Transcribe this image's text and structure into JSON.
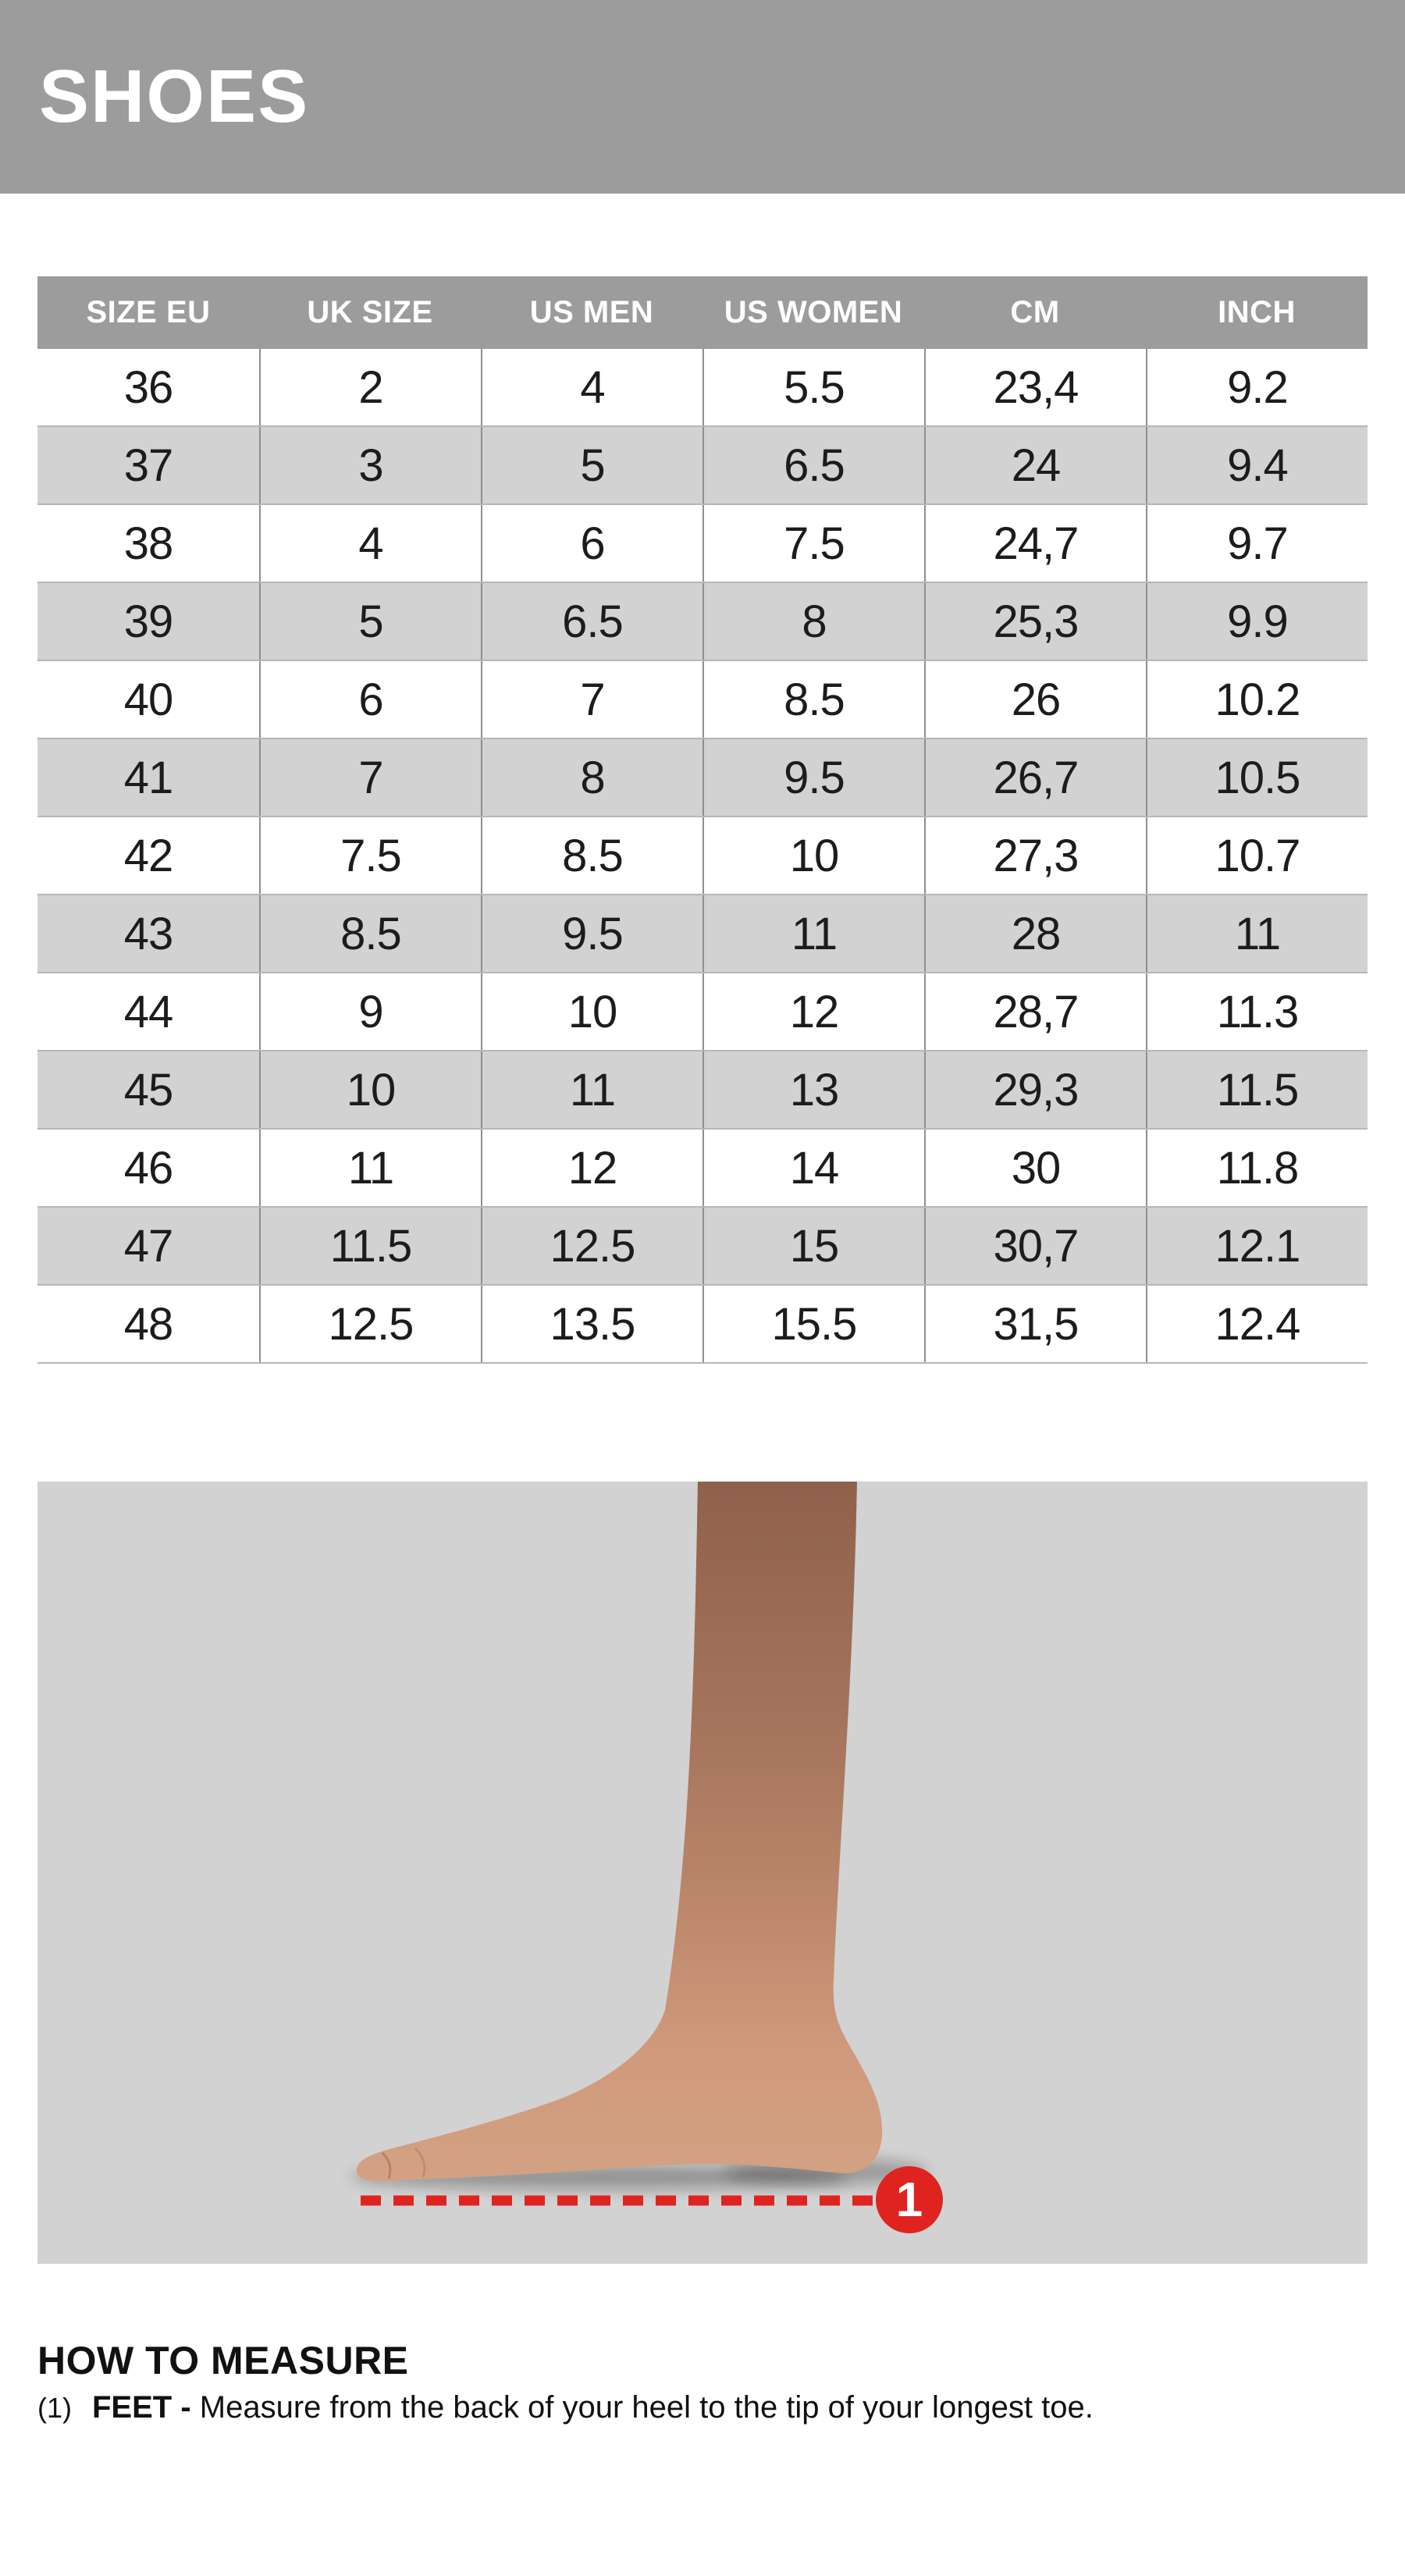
{
  "page": {
    "title": "SHOES"
  },
  "table": {
    "headers": [
      "SIZE EU",
      "UK SIZE",
      "US MEN",
      "US WOMEN",
      "CM",
      "INCH"
    ],
    "rows": [
      [
        "36",
        "2",
        "4",
        "5.5",
        "23,4",
        "9.2"
      ],
      [
        "37",
        "3",
        "5",
        "6.5",
        "24",
        "9.4"
      ],
      [
        "38",
        "4",
        "6",
        "7.5",
        "24,7",
        "9.7"
      ],
      [
        "39",
        "5",
        "6.5",
        "8",
        "25,3",
        "9.9"
      ],
      [
        "40",
        "6",
        "7",
        "8.5",
        "26",
        "10.2"
      ],
      [
        "41",
        "7",
        "8",
        "9.5",
        "26,7",
        "10.5"
      ],
      [
        "42",
        "7.5",
        "8.5",
        "10",
        "27,3",
        "10.7"
      ],
      [
        "43",
        "8.5",
        "9.5",
        "11",
        "28",
        "11"
      ],
      [
        "44",
        "9",
        "10",
        "12",
        "28,7",
        "11.3"
      ],
      [
        "45",
        "10",
        "11",
        "13",
        "29,3",
        "11.5"
      ],
      [
        "46",
        "11",
        "12",
        "14",
        "30",
        "11.8"
      ],
      [
        "47",
        "11.5",
        "12.5",
        "15",
        "30,7",
        "12.1"
      ],
      [
        "48",
        "12.5",
        "13.5",
        "15.5",
        "31,5",
        "12.4"
      ]
    ]
  },
  "measure": {
    "heading": "HOW TO MEASURE",
    "step_number": "(1)",
    "step_label": "FEET -",
    "step_text": "Measure from the back of your heel to the tip of your longest toe.",
    "marker_label": "1"
  },
  "colors": {
    "band_gray": "#9c9c9c",
    "stripe_gray": "#d2d2d2",
    "row_line_gray": "#b7b7b7",
    "column_line_gray": "#8f8f8f",
    "accent_red": "#df2420",
    "text_black": "#1c1c1c"
  }
}
